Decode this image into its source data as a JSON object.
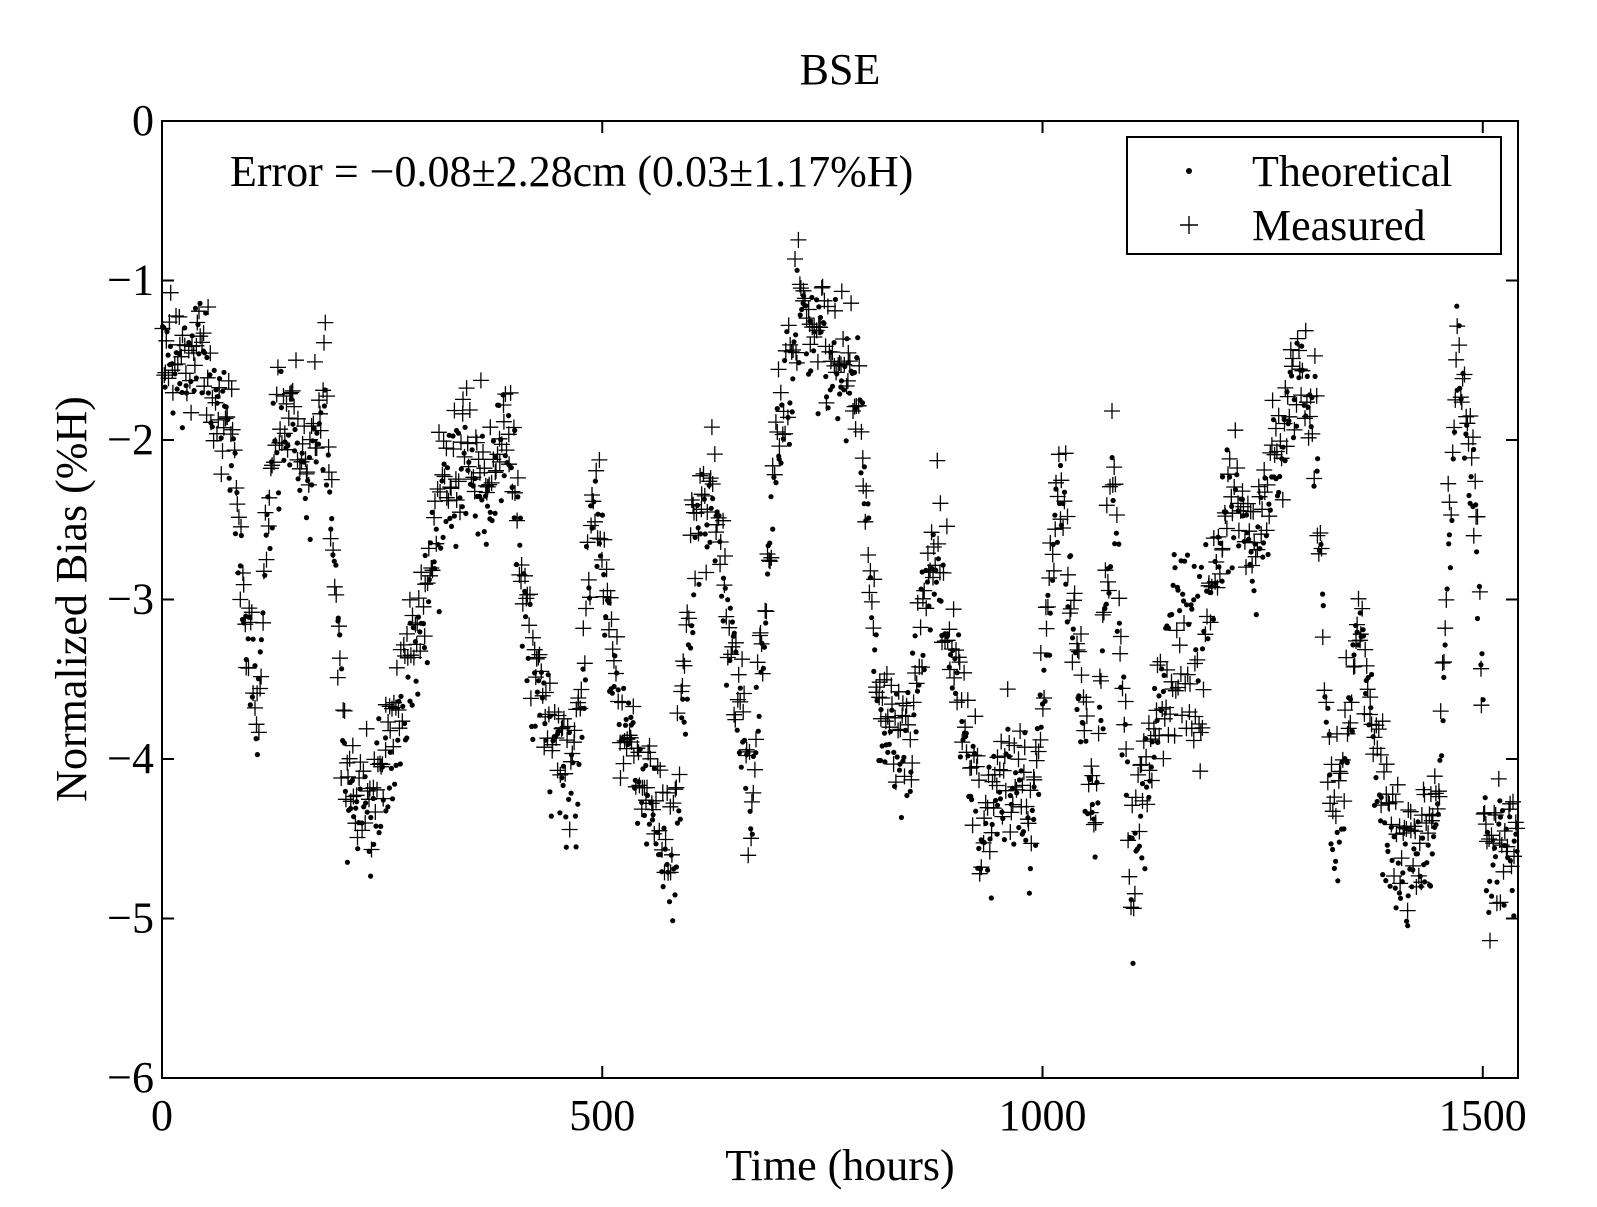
{
  "chart_data": {
    "type": "scatter",
    "title": "BSE",
    "xlabel": "Time (hours)",
    "ylabel": "Normalized Bias (%H)",
    "xlim": [
      0,
      1540
    ],
    "ylim": [
      -6,
      0
    ],
    "xticks": [
      0,
      500,
      1000,
      1500
    ],
    "yticks": [
      0,
      -1,
      -2,
      -3,
      -4,
      -5,
      -6
    ],
    "xtick_labels": [
      "0",
      "500",
      "1000",
      "1500"
    ],
    "ytick_labels": [
      "0",
      "−1",
      "−2",
      "−3",
      "−4",
      "−5",
      "−6"
    ],
    "annotation": "Error = −0.08±2.28cm  (0.03±1.17%H)",
    "grid": false,
    "legend_position": "top-right",
    "series": [
      {
        "name": "Theoretical",
        "marker": "dot",
        "trend": [
          [
            0,
            -1.55
          ],
          [
            25,
            -1.6
          ],
          [
            45,
            -1.5
          ],
          [
            60,
            -1.8
          ],
          [
            80,
            -2.1
          ],
          [
            95,
            -3.3
          ],
          [
            110,
            -3.6
          ],
          [
            125,
            -2.1
          ],
          [
            150,
            -1.9
          ],
          [
            165,
            -2.4
          ],
          [
            185,
            -1.7
          ],
          [
            200,
            -3.0
          ],
          [
            210,
            -4.3
          ],
          [
            240,
            -4.4
          ],
          [
            270,
            -3.8
          ],
          [
            300,
            -3.0
          ],
          [
            320,
            -2.4
          ],
          [
            345,
            -2.2
          ],
          [
            370,
            -2.3
          ],
          [
            395,
            -2.0
          ],
          [
            420,
            -3.6
          ],
          [
            445,
            -4.0
          ],
          [
            470,
            -4.3
          ],
          [
            490,
            -2.5
          ],
          [
            520,
            -3.8
          ],
          [
            550,
            -4.2
          ],
          [
            580,
            -4.8
          ],
          [
            600,
            -3.0
          ],
          [
            625,
            -2.4
          ],
          [
            650,
            -3.5
          ],
          [
            670,
            -4.3
          ],
          [
            700,
            -2.0
          ],
          [
            725,
            -1.3
          ],
          [
            760,
            -1.5
          ],
          [
            790,
            -1.7
          ],
          [
            815,
            -3.8
          ],
          [
            850,
            -4.0
          ],
          [
            875,
            -2.7
          ],
          [
            900,
            -3.4
          ],
          [
            930,
            -4.5
          ],
          [
            960,
            -4.2
          ],
          [
            990,
            -4.4
          ],
          [
            1020,
            -2.2
          ],
          [
            1040,
            -3.6
          ],
          [
            1060,
            -4.5
          ],
          [
            1080,
            -2.2
          ],
          [
            1100,
            -4.8
          ],
          [
            1125,
            -4.0
          ],
          [
            1150,
            -2.8
          ],
          [
            1180,
            -3.2
          ],
          [
            1210,
            -2.4
          ],
          [
            1240,
            -2.7
          ],
          [
            1270,
            -2.2
          ],
          [
            1290,
            -1.6
          ],
          [
            1310,
            -2.0
          ],
          [
            1330,
            -4.7
          ],
          [
            1360,
            -3.2
          ],
          [
            1390,
            -4.6
          ],
          [
            1420,
            -4.8
          ],
          [
            1450,
            -4.3
          ],
          [
            1470,
            -1.6
          ],
          [
            1490,
            -2.3
          ],
          [
            1505,
            -4.7
          ],
          [
            1540,
            -4.6
          ]
        ]
      },
      {
        "name": "Measured",
        "marker": "plus",
        "trend": [
          [
            0,
            -1.5
          ],
          [
            25,
            -1.45
          ],
          [
            45,
            -1.4
          ],
          [
            60,
            -1.8
          ],
          [
            80,
            -2.0
          ],
          [
            95,
            -3.2
          ],
          [
            110,
            -3.5
          ],
          [
            125,
            -2.0
          ],
          [
            150,
            -1.8
          ],
          [
            165,
            -2.3
          ],
          [
            185,
            -1.6
          ],
          [
            200,
            -3.2
          ],
          [
            210,
            -4.2
          ],
          [
            240,
            -4.2
          ],
          [
            270,
            -3.6
          ],
          [
            300,
            -2.9
          ],
          [
            320,
            -2.2
          ],
          [
            345,
            -2.0
          ],
          [
            370,
            -2.2
          ],
          [
            395,
            -1.9
          ],
          [
            420,
            -3.4
          ],
          [
            445,
            -3.9
          ],
          [
            470,
            -4.1
          ],
          [
            490,
            -2.3
          ],
          [
            520,
            -3.7
          ],
          [
            550,
            -4.1
          ],
          [
            580,
            -4.6
          ],
          [
            600,
            -2.8
          ],
          [
            625,
            -2.2
          ],
          [
            650,
            -3.4
          ],
          [
            670,
            -4.2
          ],
          [
            700,
            -1.9
          ],
          [
            725,
            -1.1
          ],
          [
            760,
            -1.4
          ],
          [
            790,
            -1.6
          ],
          [
            815,
            -3.7
          ],
          [
            850,
            -3.9
          ],
          [
            875,
            -2.5
          ],
          [
            900,
            -3.3
          ],
          [
            930,
            -4.4
          ],
          [
            960,
            -4.0
          ],
          [
            990,
            -4.3
          ],
          [
            1020,
            -2.1
          ],
          [
            1040,
            -3.4
          ],
          [
            1060,
            -4.3
          ],
          [
            1080,
            -2.1
          ],
          [
            1100,
            -4.7
          ],
          [
            1125,
            -3.8
          ],
          [
            1150,
            -3.5
          ],
          [
            1180,
            -3.6
          ],
          [
            1210,
            -2.3
          ],
          [
            1240,
            -2.6
          ],
          [
            1270,
            -2.0
          ],
          [
            1290,
            -1.5
          ],
          [
            1310,
            -1.8
          ],
          [
            1330,
            -4.5
          ],
          [
            1360,
            -3.0
          ],
          [
            1390,
            -4.4
          ],
          [
            1420,
            -4.7
          ],
          [
            1450,
            -4.1
          ],
          [
            1470,
            -1.5
          ],
          [
            1490,
            -2.2
          ],
          [
            1505,
            -4.6
          ],
          [
            1540,
            -4.5
          ]
        ]
      }
    ]
  }
}
